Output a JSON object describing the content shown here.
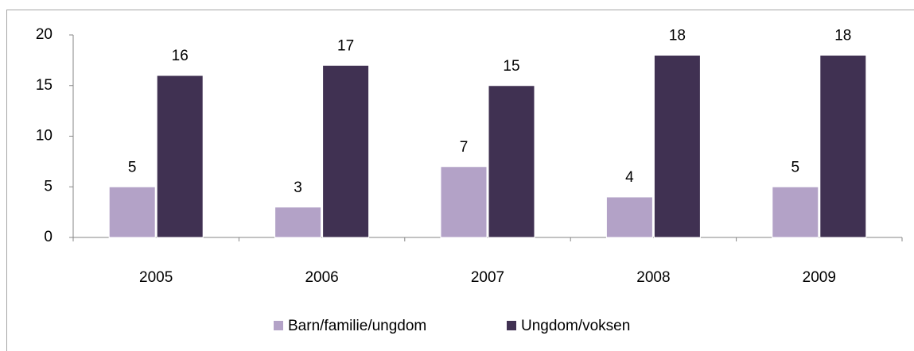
{
  "chart_data": {
    "type": "bar",
    "categories": [
      "2005",
      "2006",
      "2007",
      "2008",
      "2009"
    ],
    "series": [
      {
        "name": "Barn/familie/ungdom",
        "color": "#b3a2c7",
        "values": [
          5,
          3,
          7,
          4,
          5
        ]
      },
      {
        "name": "Ungdom/voksen",
        "color": "#403152",
        "values": [
          16,
          17,
          15,
          18,
          18
        ]
      }
    ],
    "ylim": [
      0,
      20
    ],
    "yticks": [
      0,
      5,
      10,
      15,
      20
    ],
    "legend": "bottom"
  }
}
